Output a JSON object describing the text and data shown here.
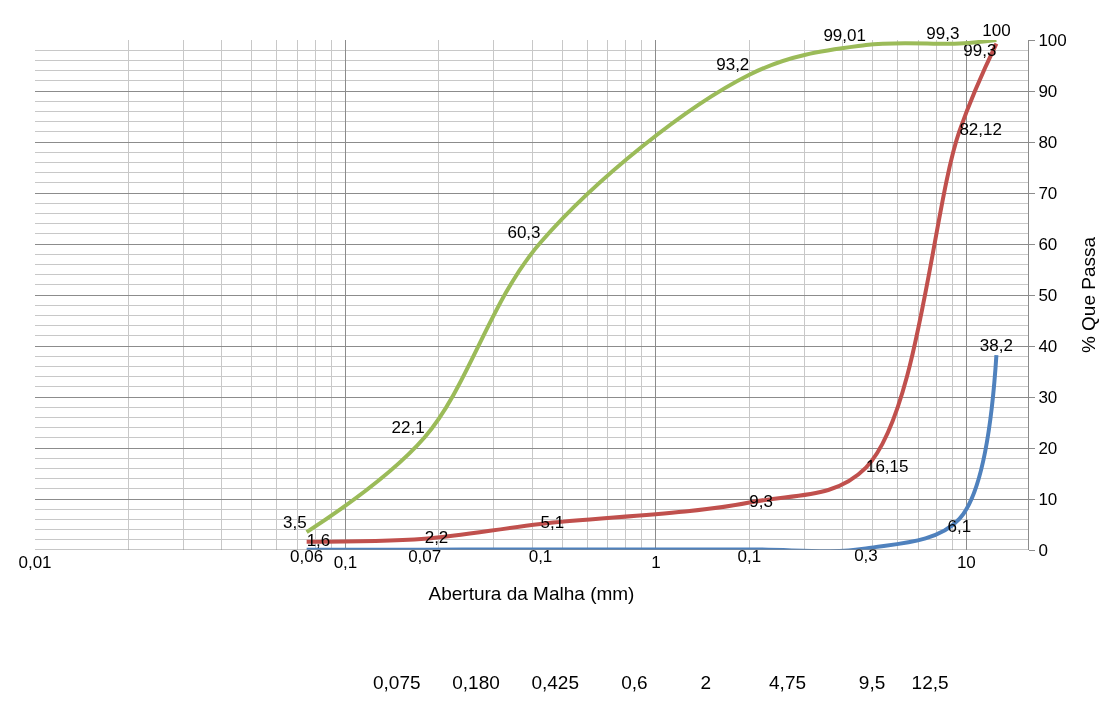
{
  "chart_data": {
    "type": "line",
    "xlabel": "Abertura da Malha (mm)",
    "ylabel": "% Que Passa",
    "x": [
      0.075,
      0.18,
      0.425,
      2,
      4.75,
      9.5,
      12.5
    ],
    "series": [
      {
        "color": "#4f81bd",
        "values": [
          0.06,
          0.07,
          0.1,
          0.1,
          0.3,
          6.1,
          38.2
        ],
        "value_labels": [
          "0,06",
          "0,07",
          "0,1",
          "0,1",
          "0,3",
          "6,1",
          "38,2"
        ]
      },
      {
        "color": "#c0504d",
        "values": [
          1.6,
          2.2,
          5.1,
          9.3,
          16.15,
          82.12,
          99.3
        ],
        "value_labels": [
          "1,6",
          "2,2",
          "5,1",
          "9,3",
          "16,15",
          "82,12",
          "99,3"
        ]
      },
      {
        "color": "#9bbb59",
        "values": [
          3.5,
          22.1,
          60.3,
          93.2,
          99.01,
          99.3,
          100
        ],
        "value_labels": [
          "3,5",
          "22,1",
          "60,3",
          "93,2",
          "99,01",
          "99,3",
          "100"
        ]
      }
    ],
    "log": "x",
    "xlim": [
      0.01,
      15.8
    ],
    "xticks": [
      {
        "value": 0.01,
        "label": "0,01"
      },
      {
        "value": 0.1,
        "label": "0,1"
      },
      {
        "value": 1,
        "label": "1"
      },
      {
        "value": 10,
        "label": "10"
      }
    ],
    "ylim": [
      0,
      100
    ],
    "yticks": [
      0,
      10,
      20,
      30,
      40,
      50,
      60,
      70,
      80,
      90,
      100
    ],
    "grid": true,
    "legend": false,
    "marker": "none",
    "line_style": "solid",
    "annotations": [
      "0,075      0,180      0,425        0,6          2           4,75          9,5     12,5"
    ]
  }
}
